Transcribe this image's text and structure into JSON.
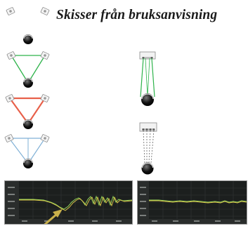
{
  "heading": "Skisser från bruksanvisning",
  "colors": {
    "green": "#2db34a",
    "red": "#e8604a",
    "blue": "#7fb0d6",
    "curve_green": "#8fd05a",
    "curve_yellow": "#e0c84a",
    "arrow": "#c9b04a"
  },
  "icons": {
    "speaker": "speaker-icon",
    "listener": "listener-head-icon",
    "tv": "tv-soundbar-icon",
    "arrow": "arrow-pointer-icon"
  }
}
